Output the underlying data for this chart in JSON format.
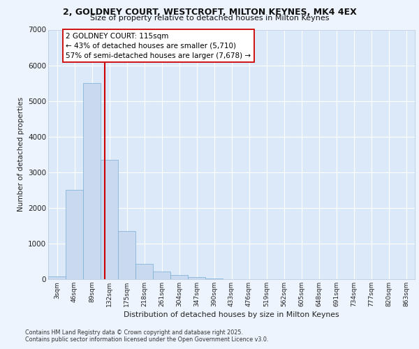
{
  "title_line1": "2, GOLDNEY COURT, WESTCROFT, MILTON KEYNES, MK4 4EX",
  "title_line2": "Size of property relative to detached houses in Milton Keynes",
  "xlabel": "Distribution of detached houses by size in Milton Keynes",
  "ylabel": "Number of detached properties",
  "categories": [
    "3sqm",
    "46sqm",
    "89sqm",
    "132sqm",
    "175sqm",
    "218sqm",
    "261sqm",
    "304sqm",
    "347sqm",
    "390sqm",
    "433sqm",
    "476sqm",
    "519sqm",
    "562sqm",
    "605sqm",
    "648sqm",
    "691sqm",
    "734sqm",
    "777sqm",
    "820sqm",
    "863sqm"
  ],
  "values": [
    80,
    2500,
    5500,
    3350,
    1350,
    430,
    220,
    120,
    50,
    10,
    5,
    0,
    0,
    0,
    0,
    0,
    0,
    0,
    0,
    0,
    0
  ],
  "bar_color": "#c8d9f0",
  "bar_edge_color": "#7aadd4",
  "vline_color": "#cc0000",
  "vline_pos": 2.72,
  "annotation_title": "2 GOLDNEY COURT: 115sqm",
  "annotation_line1": "← 43% of detached houses are smaller (5,710)",
  "annotation_line2": "57% of semi-detached houses are larger (7,678) →",
  "annotation_box_facecolor": "#ffffff",
  "annotation_box_edgecolor": "#cc0000",
  "background_color": "#edf4fd",
  "plot_bg_color": "#dce9f8",
  "grid_color": "#ffffff",
  "ylim": [
    0,
    7000
  ],
  "yticks": [
    0,
    1000,
    2000,
    3000,
    4000,
    5000,
    6000,
    7000
  ],
  "footer_line1": "Contains HM Land Registry data © Crown copyright and database right 2025.",
  "footer_line2": "Contains public sector information licensed under the Open Government Licence v3.0."
}
